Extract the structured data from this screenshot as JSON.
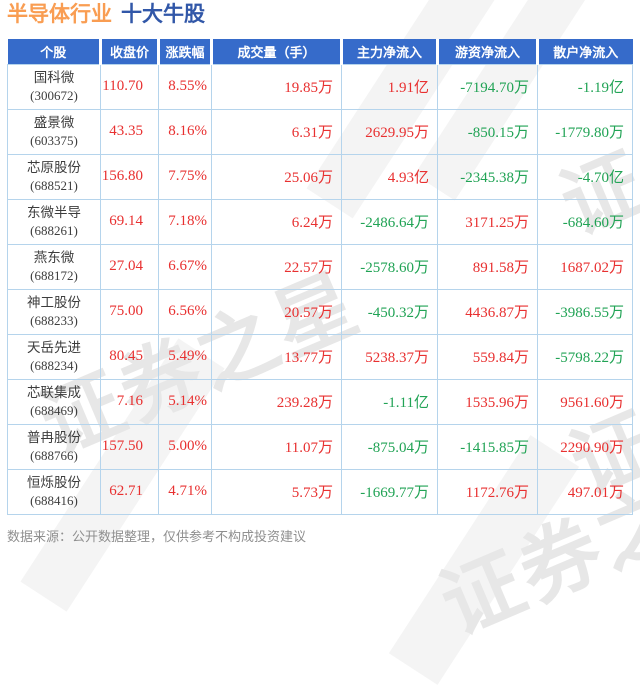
{
  "title": {
    "industry": "半导体行业",
    "suffix": "十大牛股"
  },
  "watermark_text": "证券之星",
  "footer": {
    "text": "数据来源：公开数据整理，仅供参考不构成投资建议"
  },
  "colors": {
    "red": "#e83030",
    "green": "#21a355",
    "header-bg": "#366bca",
    "border-c": "#b5d4ec",
    "title-orange": "#f99d52",
    "title-blue": "#3157a8",
    "name-text": "#3d3d3d",
    "footer-text": "#8f8f8f"
  },
  "chart_data": {
    "type": "table",
    "title": "半导体行业 十大牛股",
    "columns": [
      "个股",
      "收盘价",
      "涨跌幅",
      "成交量（手）",
      "主力净流入",
      "游资净流入",
      "散户净流入"
    ],
    "value_color_rule": "negative values green, positive values red",
    "rows": [
      {
        "name": "国科微",
        "code": "(300672)",
        "values": [
          "110.70",
          "8.55%",
          "19.85万",
          "1.91亿",
          "-7194.70万",
          "-1.19亿"
        ]
      },
      {
        "name": "盛景微",
        "code": "(603375)",
        "values": [
          "43.35",
          "8.16%",
          "6.31万",
          "2629.95万",
          "-850.15万",
          "-1779.80万"
        ]
      },
      {
        "name": "芯原股份",
        "code": "(688521)",
        "values": [
          "156.80",
          "7.75%",
          "25.06万",
          "4.93亿",
          "-2345.38万",
          "-4.70亿"
        ]
      },
      {
        "name": "东微半导",
        "code": "(688261)",
        "values": [
          "69.14",
          "7.18%",
          "6.24万",
          "-2486.64万",
          "3171.25万",
          "-684.60万"
        ]
      },
      {
        "name": "燕东微",
        "code": "(688172)",
        "values": [
          "27.04",
          "6.67%",
          "22.57万",
          "-2578.60万",
          "891.58万",
          "1687.02万"
        ]
      },
      {
        "name": "神工股份",
        "code": "(688233)",
        "values": [
          "75.00",
          "6.56%",
          "20.57万",
          "-450.32万",
          "4436.87万",
          "-3986.55万"
        ]
      },
      {
        "name": "天岳先进",
        "code": "(688234)",
        "values": [
          "80.45",
          "5.49%",
          "13.77万",
          "5238.37万",
          "559.84万",
          "-5798.22万"
        ]
      },
      {
        "name": "芯联集成",
        "code": "(688469)",
        "values": [
          "7.16",
          "5.14%",
          "239.28万",
          "-1.11亿",
          "1535.96万",
          "9561.60万"
        ]
      },
      {
        "name": "普冉股份",
        "code": "(688766)",
        "values": [
          "157.50",
          "5.00%",
          "11.07万",
          "-875.04万",
          "-1415.85万",
          "2290.90万"
        ]
      },
      {
        "name": "恒烁股份",
        "code": "(688416)",
        "values": [
          "62.71",
          "4.71%",
          "5.73万",
          "-1669.77万",
          "1172.76万",
          "497.01万"
        ]
      }
    ]
  }
}
